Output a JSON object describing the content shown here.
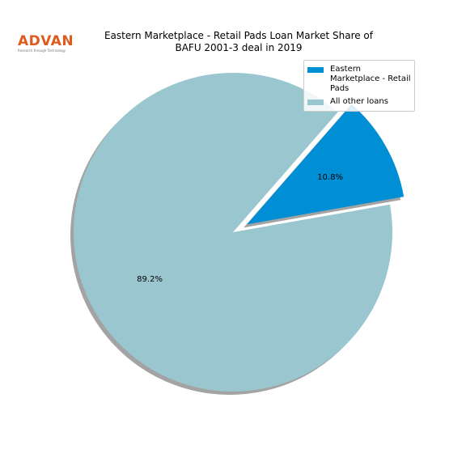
{
  "logo": {
    "name": "ADVAN",
    "tagline": "Research through Technology"
  },
  "chart_data": {
    "type": "pie",
    "title": "Eastern Marketplace - Retail Pads Loan Market Share of BAFU 2001-3 deal in 2019",
    "categories": [
      "Eastern Marketplace - Retail Pads",
      "All other loans"
    ],
    "values": [
      10.8,
      89.2
    ],
    "value_labels": [
      "10.8%",
      "89.2%"
    ],
    "colors": [
      "#008fd5",
      "#99c6cf"
    ],
    "legend": "upper right"
  }
}
